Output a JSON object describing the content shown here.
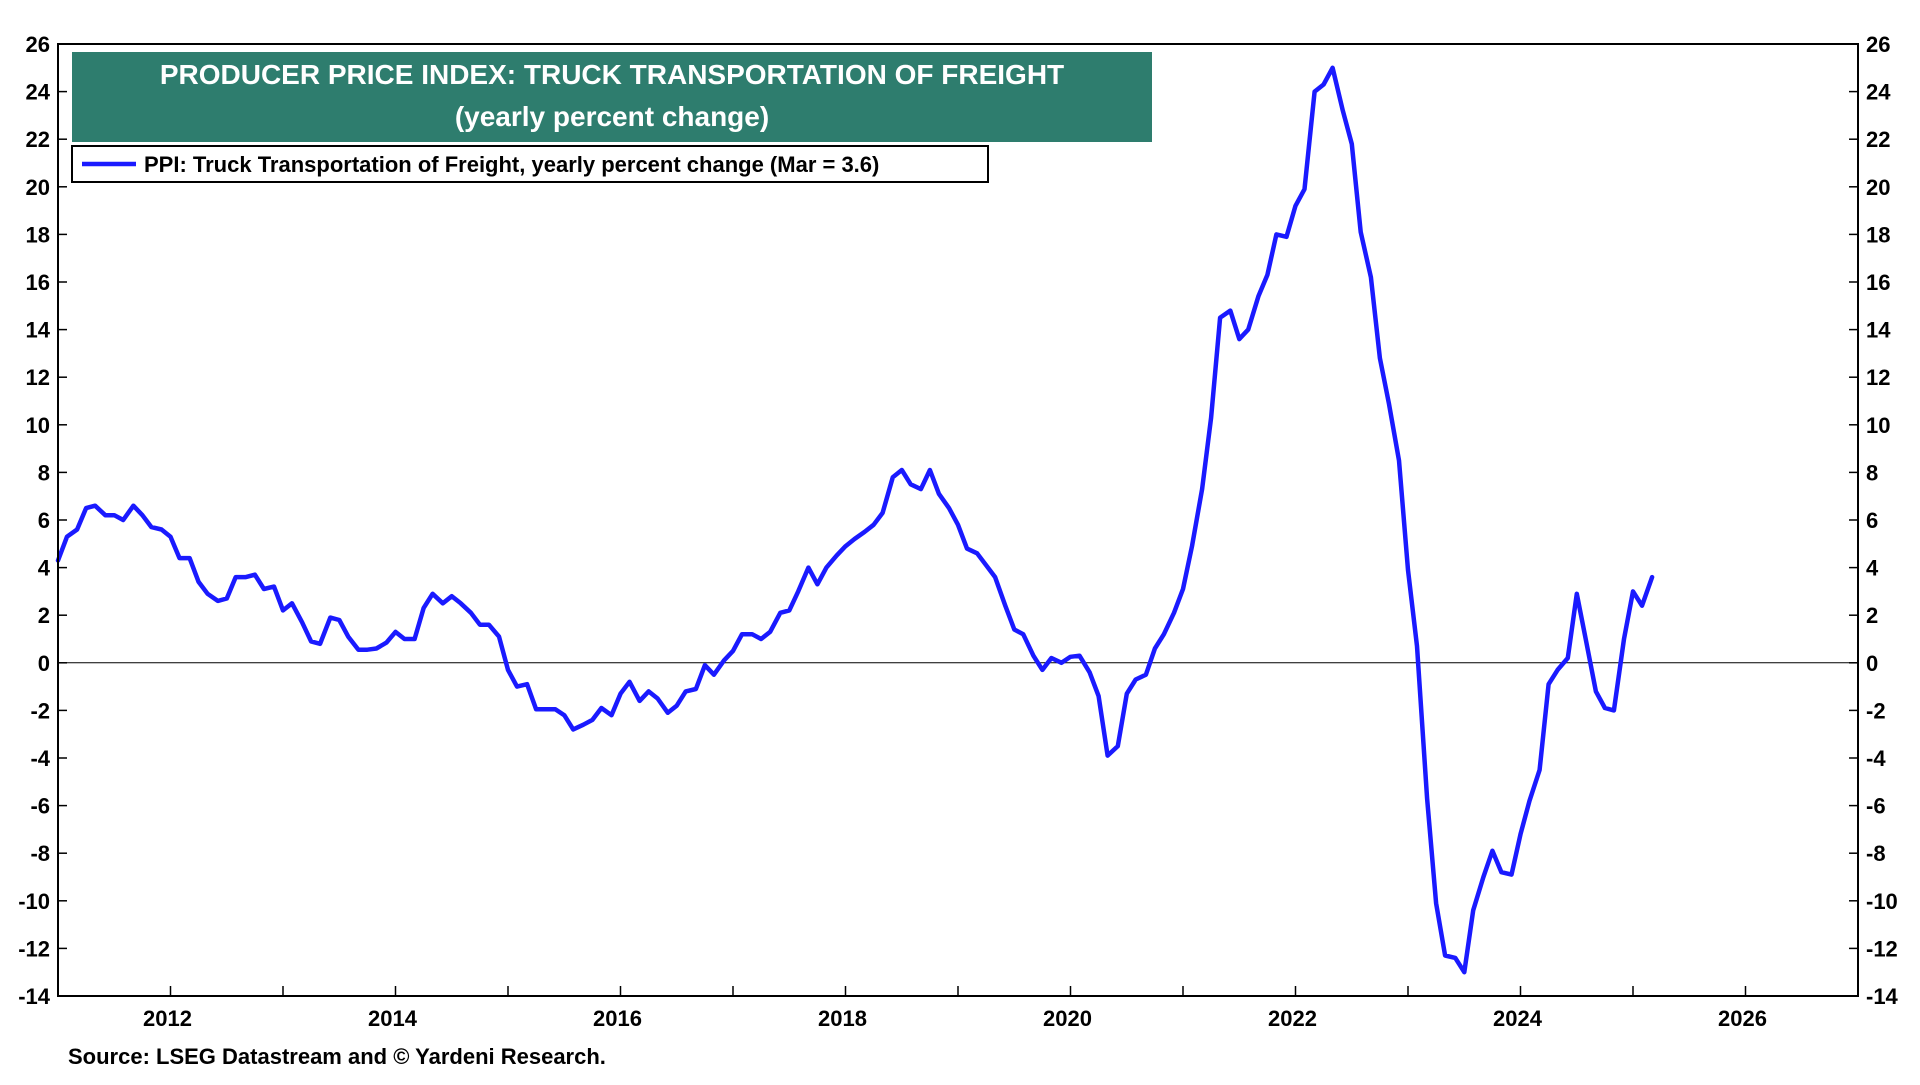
{
  "chart_data": {
    "type": "line",
    "title": "PRODUCER PRICE INDEX: TRUCK TRANSPORTATION OF FREIGHT",
    "subtitle": "(yearly percent change)",
    "legend_position": "top-left",
    "grid": false,
    "zero_line": true,
    "xlim": [
      2011.0,
      2027.0
    ],
    "ylim": [
      -14,
      26
    ],
    "x_ticks": [
      2012,
      2014,
      2016,
      2018,
      2020,
      2022,
      2024,
      2026
    ],
    "y_ticks": [
      26,
      24,
      22,
      20,
      18,
      16,
      14,
      12,
      10,
      8,
      6,
      4,
      2,
      0,
      -2,
      -4,
      -6,
      -8,
      -10,
      -12,
      -14
    ],
    "series": [
      {
        "name": "PPI: Truck Transportation of Freight, yearly percent change (Mar = 3.6)",
        "color": "#1a1aff",
        "points": [
          [
            2011.0,
            4.3
          ],
          [
            2011.08,
            5.3
          ],
          [
            2011.17,
            5.6
          ],
          [
            2011.25,
            6.5
          ],
          [
            2011.33,
            6.6
          ],
          [
            2011.42,
            6.2
          ],
          [
            2011.5,
            6.2
          ],
          [
            2011.58,
            6.0
          ],
          [
            2011.67,
            6.6
          ],
          [
            2011.75,
            6.2
          ],
          [
            2011.83,
            5.7
          ],
          [
            2011.92,
            5.6
          ],
          [
            2012.0,
            5.3
          ],
          [
            2012.08,
            4.4
          ],
          [
            2012.17,
            4.4
          ],
          [
            2012.25,
            3.4
          ],
          [
            2012.33,
            2.9
          ],
          [
            2012.42,
            2.6
          ],
          [
            2012.5,
            2.7
          ],
          [
            2012.58,
            3.6
          ],
          [
            2012.67,
            3.6
          ],
          [
            2012.75,
            3.7
          ],
          [
            2012.83,
            3.1
          ],
          [
            2012.92,
            3.2
          ],
          [
            2013.0,
            2.2
          ],
          [
            2013.08,
            2.5
          ],
          [
            2013.17,
            1.7
          ],
          [
            2013.25,
            0.9
          ],
          [
            2013.33,
            0.8
          ],
          [
            2013.42,
            1.9
          ],
          [
            2013.5,
            1.8
          ],
          [
            2013.58,
            1.1
          ],
          [
            2013.67,
            0.55
          ],
          [
            2013.75,
            0.55
          ],
          [
            2013.83,
            0.6
          ],
          [
            2013.92,
            0.85
          ],
          [
            2014.0,
            1.3
          ],
          [
            2014.08,
            1.0
          ],
          [
            2014.17,
            1.0
          ],
          [
            2014.25,
            2.3
          ],
          [
            2014.33,
            2.9
          ],
          [
            2014.42,
            2.5
          ],
          [
            2014.5,
            2.8
          ],
          [
            2014.58,
            2.5
          ],
          [
            2014.67,
            2.1
          ],
          [
            2014.75,
            1.6
          ],
          [
            2014.83,
            1.6
          ],
          [
            2014.92,
            1.1
          ],
          [
            2015.0,
            -0.3
          ],
          [
            2015.08,
            -1.0
          ],
          [
            2015.17,
            -0.9
          ],
          [
            2015.25,
            -1.95
          ],
          [
            2015.33,
            -1.95
          ],
          [
            2015.42,
            -1.95
          ],
          [
            2015.5,
            -2.2
          ],
          [
            2015.58,
            -2.8
          ],
          [
            2015.67,
            -2.6
          ],
          [
            2015.75,
            -2.4
          ],
          [
            2015.83,
            -1.9
          ],
          [
            2015.92,
            -2.2
          ],
          [
            2016.0,
            -1.3
          ],
          [
            2016.08,
            -0.8
          ],
          [
            2016.17,
            -1.6
          ],
          [
            2016.25,
            -1.2
          ],
          [
            2016.33,
            -1.5
          ],
          [
            2016.42,
            -2.1
          ],
          [
            2016.5,
            -1.8
          ],
          [
            2016.58,
            -1.2
          ],
          [
            2016.67,
            -1.1
          ],
          [
            2016.75,
            -0.1
          ],
          [
            2016.83,
            -0.5
          ],
          [
            2016.92,
            0.1
          ],
          [
            2017.0,
            0.5
          ],
          [
            2017.08,
            1.2
          ],
          [
            2017.17,
            1.2
          ],
          [
            2017.25,
            1.0
          ],
          [
            2017.33,
            1.3
          ],
          [
            2017.42,
            2.1
          ],
          [
            2017.5,
            2.2
          ],
          [
            2017.58,
            3.0
          ],
          [
            2017.67,
            4.0
          ],
          [
            2017.75,
            3.3
          ],
          [
            2017.83,
            4.0
          ],
          [
            2017.92,
            4.5
          ],
          [
            2018.0,
            4.9
          ],
          [
            2018.08,
            5.2
          ],
          [
            2018.17,
            5.5
          ],
          [
            2018.25,
            5.8
          ],
          [
            2018.33,
            6.3
          ],
          [
            2018.42,
            7.8
          ],
          [
            2018.5,
            8.1
          ],
          [
            2018.58,
            7.5
          ],
          [
            2018.67,
            7.3
          ],
          [
            2018.75,
            8.1
          ],
          [
            2018.83,
            7.1
          ],
          [
            2018.92,
            6.5
          ],
          [
            2019.0,
            5.8
          ],
          [
            2019.08,
            4.8
          ],
          [
            2019.17,
            4.6
          ],
          [
            2019.25,
            4.1
          ],
          [
            2019.33,
            3.6
          ],
          [
            2019.42,
            2.4
          ],
          [
            2019.5,
            1.4
          ],
          [
            2019.58,
            1.2
          ],
          [
            2019.67,
            0.3
          ],
          [
            2019.75,
            -0.3
          ],
          [
            2019.83,
            0.2
          ],
          [
            2019.92,
            0.0
          ],
          [
            2020.0,
            0.25
          ],
          [
            2020.08,
            0.3
          ],
          [
            2020.17,
            -0.4
          ],
          [
            2020.25,
            -1.4
          ],
          [
            2020.33,
            -3.9
          ],
          [
            2020.42,
            -3.5
          ],
          [
            2020.5,
            -1.3
          ],
          [
            2020.58,
            -0.7
          ],
          [
            2020.67,
            -0.5
          ],
          [
            2020.75,
            0.6
          ],
          [
            2020.83,
            1.2
          ],
          [
            2020.92,
            2.1
          ],
          [
            2021.0,
            3.1
          ],
          [
            2021.08,
            4.9
          ],
          [
            2021.17,
            7.3
          ],
          [
            2021.25,
            10.3
          ],
          [
            2021.33,
            14.5
          ],
          [
            2021.42,
            14.8
          ],
          [
            2021.5,
            13.6
          ],
          [
            2021.58,
            14.0
          ],
          [
            2021.67,
            15.4
          ],
          [
            2021.75,
            16.3
          ],
          [
            2021.83,
            18.0
          ],
          [
            2021.92,
            17.9
          ],
          [
            2022.0,
            19.2
          ],
          [
            2022.08,
            19.9
          ],
          [
            2022.17,
            24.0
          ],
          [
            2022.25,
            24.3
          ],
          [
            2022.33,
            25.0
          ],
          [
            2022.42,
            23.2
          ],
          [
            2022.5,
            21.8
          ],
          [
            2022.58,
            18.1
          ],
          [
            2022.67,
            16.2
          ],
          [
            2022.75,
            12.8
          ],
          [
            2022.83,
            10.9
          ],
          [
            2022.92,
            8.5
          ],
          [
            2023.0,
            3.9
          ],
          [
            2023.08,
            0.7
          ],
          [
            2023.17,
            -5.7
          ],
          [
            2023.25,
            -10.1
          ],
          [
            2023.33,
            -12.3
          ],
          [
            2023.42,
            -12.4
          ],
          [
            2023.5,
            -13.0
          ],
          [
            2023.58,
            -10.4
          ],
          [
            2023.67,
            -9.0
          ],
          [
            2023.75,
            -7.9
          ],
          [
            2023.83,
            -8.8
          ],
          [
            2023.92,
            -8.9
          ],
          [
            2024.0,
            -7.2
          ],
          [
            2024.08,
            -5.8
          ],
          [
            2024.17,
            -4.5
          ],
          [
            2024.25,
            -0.9
          ],
          [
            2024.33,
            -0.3
          ],
          [
            2024.42,
            0.2
          ],
          [
            2024.5,
            2.9
          ],
          [
            2024.58,
            1.0
          ],
          [
            2024.67,
            -1.2
          ],
          [
            2024.75,
            -1.9
          ],
          [
            2024.83,
            -2.0
          ],
          [
            2024.92,
            1.0
          ],
          [
            2025.0,
            3.0
          ],
          [
            2025.08,
            2.4
          ],
          [
            2025.17,
            3.6
          ]
        ]
      }
    ],
    "source": "Source: LSEG Datastream and © Yardeni Research."
  }
}
